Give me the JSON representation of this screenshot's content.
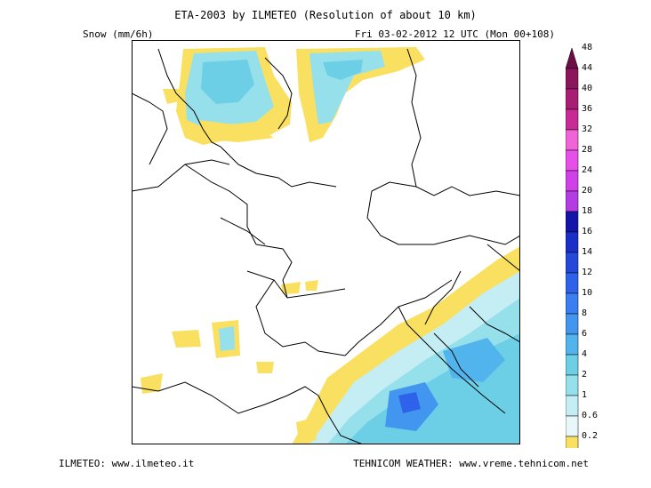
{
  "header": {
    "title": "ETA-2003 by ILMETEO (Resolution of about 10 km)",
    "variable": "Snow (mm/6h)",
    "run": "Fri 03-02-2012 12 UTC (Mon 00+108)"
  },
  "footer": {
    "left": "ILMETEO: www.ilmeteo.it",
    "right": "TEHNICOM WEATHER: www.vreme.tehnicom.net"
  },
  "legend": {
    "units": "mm/6h",
    "levels": [
      {
        "value": "0.2",
        "color": "#fae060"
      },
      {
        "value": "0.6",
        "color": "#e8f8fa"
      },
      {
        "value": "1",
        "color": "#c4eef4"
      },
      {
        "value": "2",
        "color": "#96e0ec"
      },
      {
        "value": "4",
        "color": "#6ccfe6"
      },
      {
        "value": "6",
        "color": "#52b4ec"
      },
      {
        "value": "8",
        "color": "#4296f0"
      },
      {
        "value": "10",
        "color": "#3a7ef2"
      },
      {
        "value": "12",
        "color": "#2e62ea"
      },
      {
        "value": "14",
        "color": "#2448da"
      },
      {
        "value": "16",
        "color": "#1c2ec8"
      },
      {
        "value": "18",
        "color": "#1414aa"
      },
      {
        "value": "20",
        "color": "#b43ce4"
      },
      {
        "value": "24",
        "color": "#d040e8"
      },
      {
        "value": "28",
        "color": "#e650e8"
      },
      {
        "value": "32",
        "color": "#f064d8"
      },
      {
        "value": "36",
        "color": "#c82a96"
      },
      {
        "value": "40",
        "color": "#a81e74"
      },
      {
        "value": "44",
        "color": "#8c165a"
      },
      {
        "value": "48",
        "color": "#6e0e46"
      }
    ]
  },
  "map": {
    "region": "Central Europe / North Sea to Adriatic",
    "colors": {
      "background": "#ffffff",
      "border": "#000000"
    }
  }
}
